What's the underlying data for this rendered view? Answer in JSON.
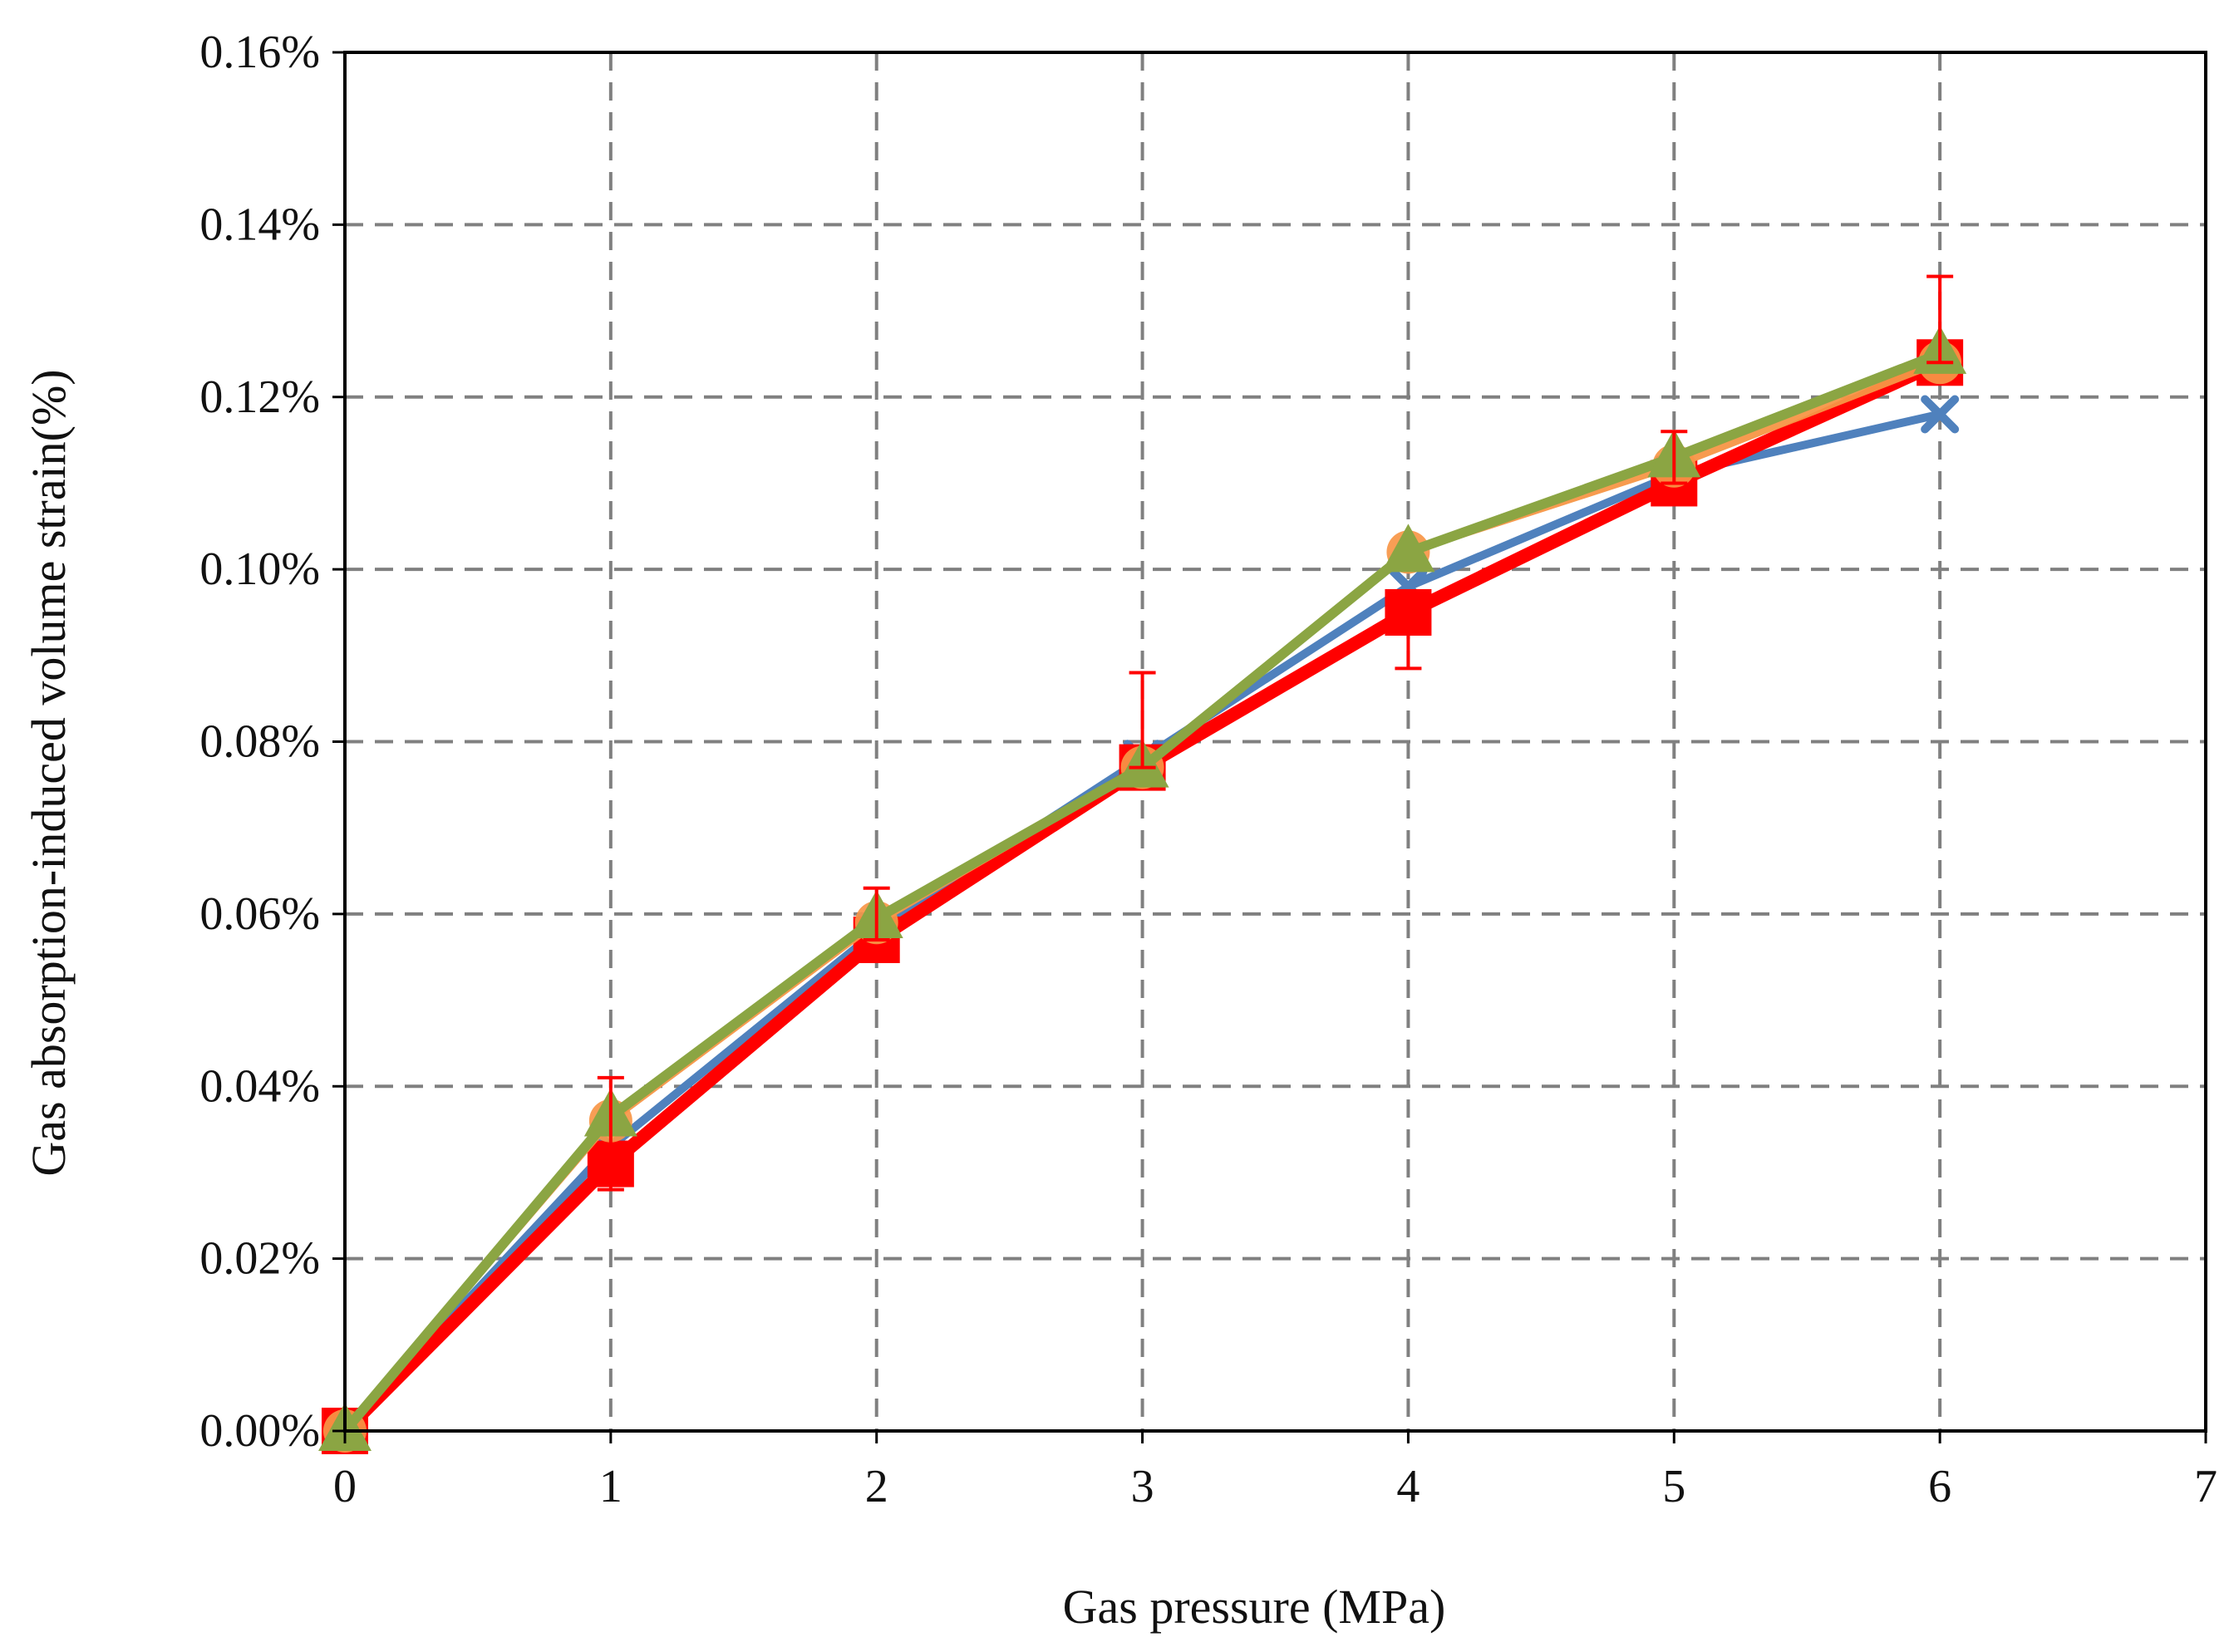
{
  "chart_data": {
    "type": "line",
    "title": "",
    "xlabel": "Gas pressure (MPa)",
    "ylabel": "Gas absorption-induced volume strain(%)",
    "xlim": [
      0,
      7
    ],
    "ylim": [
      0,
      0.16
    ],
    "x_ticks": [
      0,
      1,
      2,
      3,
      4,
      5,
      6,
      7
    ],
    "x_tick_labels": [
      "0",
      "1",
      "2",
      "3",
      "4",
      "5",
      "6",
      "7"
    ],
    "y_ticks": [
      0,
      0.02,
      0.04,
      0.06,
      0.08,
      0.1,
      0.12,
      0.14,
      0.16
    ],
    "y_tick_labels": [
      "0.00%",
      "0.02%",
      "0.04%",
      "0.06%",
      "0.08%",
      "0.10%",
      "0.12%",
      "0.14%",
      "0.16%"
    ],
    "grid": true,
    "legend": "none",
    "series": [
      {
        "color": "#4f81bd",
        "marker": "x-icon",
        "x": [
          0,
          1,
          2,
          3,
          4,
          5,
          6
        ],
        "y": [
          0,
          0.033,
          0.058,
          0.078,
          0.098,
          0.111,
          0.118
        ]
      },
      {
        "color": "#ff0000",
        "marker": "square-icon",
        "x": [
          0,
          1,
          2,
          3,
          4,
          5,
          6
        ],
        "y": [
          0,
          0.031,
          0.057,
          0.077,
          0.095,
          0.11,
          0.124
        ],
        "error_upper": [
          0,
          0.041,
          0.063,
          0.088,
          0.095,
          0.116,
          0.134
        ],
        "error_lower": [
          0,
          0.028,
          0.057,
          0.077,
          0.0885,
          0.11,
          0.124
        ]
      },
      {
        "color": "#f79646",
        "marker": "circle-icon",
        "x": [
          0,
          1,
          2,
          3,
          4,
          5,
          6
        ],
        "y": [
          0,
          0.036,
          0.059,
          0.077,
          0.102,
          0.112,
          0.124
        ]
      },
      {
        "color": "#8ba543",
        "marker": "triangle-icon",
        "x": [
          0,
          1,
          2,
          3,
          4,
          5,
          6
        ],
        "y": [
          0,
          0.0365,
          0.0595,
          0.077,
          0.102,
          0.113,
          0.125
        ]
      }
    ]
  }
}
